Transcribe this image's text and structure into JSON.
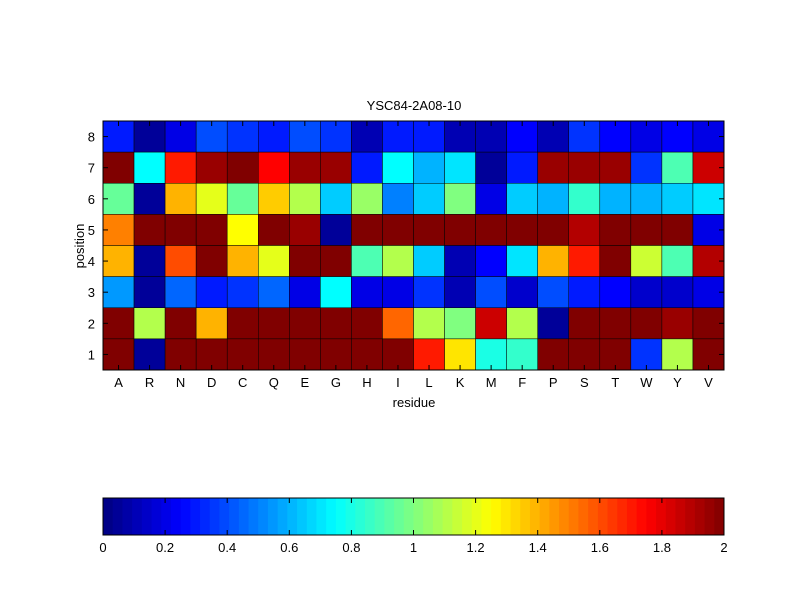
{
  "chart_data": {
    "type": "heatmap",
    "title": "YSC84-2A08-10",
    "xlabel": "residue",
    "ylabel": "position",
    "x_categories": [
      "A",
      "R",
      "N",
      "D",
      "C",
      "Q",
      "E",
      "G",
      "H",
      "I",
      "L",
      "K",
      "M",
      "F",
      "P",
      "S",
      "T",
      "W",
      "Y",
      "V"
    ],
    "y_categories": [
      "8",
      "7",
      "6",
      "5",
      "4",
      "3",
      "2",
      "1"
    ],
    "value_range": [
      0,
      2
    ],
    "colormap": "jet",
    "values": [
      [
        0.3,
        0.05,
        0.2,
        0.4,
        0.35,
        0.3,
        0.4,
        0.35,
        0.1,
        0.3,
        0.3,
        0.1,
        0.1,
        0.25,
        0.1,
        0.35,
        0.25,
        0.2,
        0.25,
        0.2
      ],
      [
        2.0,
        0.75,
        1.7,
        1.95,
        2.0,
        1.75,
        1.95,
        1.95,
        0.3,
        0.75,
        0.6,
        0.7,
        0.05,
        0.3,
        1.95,
        1.95,
        1.95,
        0.35,
        0.9,
        1.85
      ],
      [
        0.95,
        0.05,
        1.4,
        1.2,
        0.95,
        1.35,
        1.1,
        0.65,
        1.05,
        0.5,
        0.65,
        1.0,
        0.2,
        0.65,
        0.6,
        0.85,
        0.6,
        0.6,
        0.65,
        0.7
      ],
      [
        1.5,
        2.0,
        2.0,
        2.0,
        1.25,
        2.0,
        1.95,
        0.05,
        2.0,
        2.0,
        2.0,
        2.0,
        2.0,
        2.0,
        2.0,
        1.9,
        2.0,
        2.0,
        2.0,
        0.2
      ],
      [
        1.4,
        0.05,
        1.6,
        2.0,
        1.4,
        1.2,
        2.0,
        2.0,
        0.9,
        1.1,
        0.65,
        0.1,
        0.25,
        0.7,
        1.4,
        1.7,
        2.0,
        1.15,
        0.9,
        1.9
      ],
      [
        0.55,
        0.05,
        0.45,
        0.3,
        0.35,
        0.45,
        0.2,
        0.75,
        0.2,
        0.2,
        0.35,
        0.1,
        0.4,
        0.15,
        0.4,
        0.3,
        0.25,
        0.15,
        0.15,
        0.2
      ],
      [
        2.0,
        1.1,
        2.0,
        1.4,
        2.0,
        2.0,
        2.0,
        2.0,
        2.0,
        1.55,
        1.1,
        1.0,
        1.85,
        1.1,
        0.05,
        2.0,
        2.0,
        2.0,
        1.95,
        2.0
      ],
      [
        2.0,
        0.05,
        2.0,
        2.0,
        2.0,
        2.0,
        2.0,
        2.0,
        2.0,
        2.0,
        1.7,
        1.3,
        0.8,
        0.85,
        2.0,
        2.0,
        2.0,
        0.35,
        1.1,
        2.0
      ]
    ],
    "colorbar_ticks": [
      "0",
      "0.2",
      "0.4",
      "0.6",
      "0.8",
      "1",
      "1.2",
      "1.4",
      "1.6",
      "1.8",
      "2"
    ],
    "grid": false,
    "legend": "colorbar-bottom"
  }
}
